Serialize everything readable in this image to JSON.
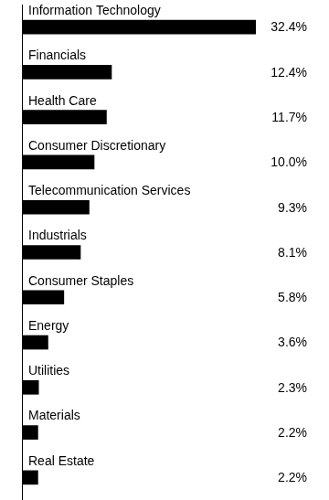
{
  "chart_data": {
    "type": "bar",
    "orientation": "horizontal",
    "categories": [
      "Information Technology",
      "Financials",
      "Health Care",
      "Consumer Discretionary",
      "Telecommunication Services",
      "Industrials",
      "Consumer Staples",
      "Energy",
      "Utilities",
      "Materials",
      "Real Estate"
    ],
    "values": [
      32.4,
      12.4,
      11.7,
      10.0,
      9.3,
      8.1,
      5.8,
      3.6,
      2.3,
      2.2,
      2.2
    ],
    "value_labels": [
      "32.4%",
      "12.4%",
      "11.7%",
      "10.0%",
      "9.3%",
      "8.1%",
      "5.8%",
      "3.6%",
      "2.3%",
      "2.2%",
      "2.2%"
    ],
    "color": "#000000",
    "grid": false,
    "data_labels": true,
    "tick_labels": false
  }
}
